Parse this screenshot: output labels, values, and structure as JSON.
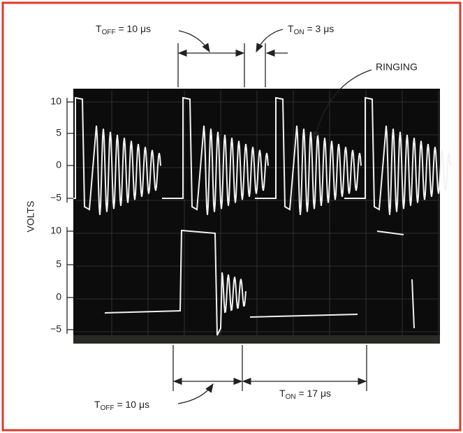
{
  "labels": {
    "top_off": {
      "main": "T",
      "subscript": "OFF",
      "rest": " = 10 μs"
    },
    "top_on": {
      "main": "T",
      "subscript": "ON",
      "rest": " = 3 μs"
    },
    "ringing": "RINGING",
    "bottom_off": {
      "main": "T",
      "subscript": "OFF",
      "rest": " = 10 μs"
    },
    "bottom_on": {
      "main": "T",
      "subscript": "ON",
      "rest": " = 17 μs"
    },
    "y_axis": "VOLTS"
  },
  "upper_axis": {
    "ticks": [
      "10",
      "5",
      "0",
      "−5"
    ]
  },
  "lower_axis": {
    "ticks": [
      "10",
      "5",
      "0",
      "−5"
    ]
  }
}
